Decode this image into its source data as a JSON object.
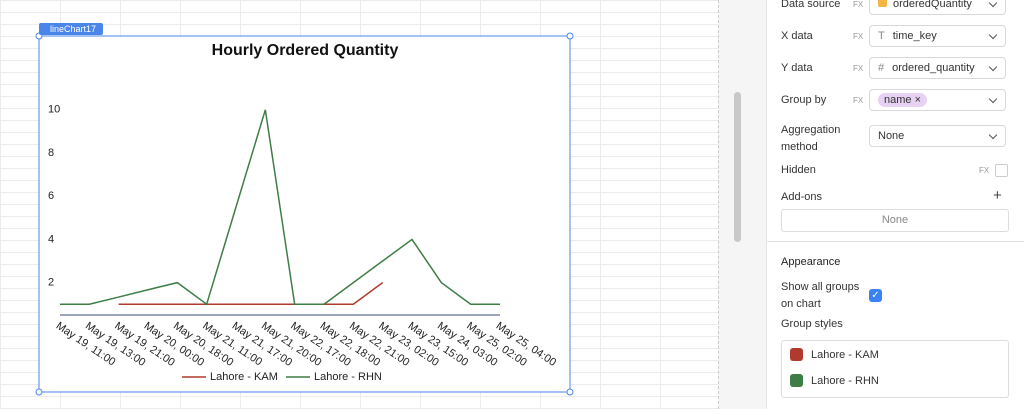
{
  "widget_label": "lineChart17",
  "chart_data": {
    "type": "line",
    "title": "Hourly Ordered Quantity",
    "categories": [
      "May 19, 11:00",
      "May 19, 13:00",
      "May 19, 21:00",
      "May 20, 00:00",
      "May 20, 18:00",
      "May 21, 11:00",
      "May 21, 17:00",
      "May 21, 20:00",
      "May 22, 17:00",
      "May 22, 18:00",
      "May 22, 21:00",
      "May 23, 02:00",
      "May 23, 15:00",
      "May 24, 03:00",
      "May 25, 02:00",
      "May 25, 04:00"
    ],
    "series": [
      {
        "name": "Lahore - KAM",
        "color": "#b03a2e",
        "values": [
          null,
          null,
          1,
          1,
          1,
          1,
          1,
          1,
          1,
          1,
          1,
          2,
          null,
          null,
          null,
          null
        ]
      },
      {
        "name": "Lahore - RHN",
        "color": "#3f7d46",
        "values": [
          1,
          1,
          1.33,
          1.67,
          2,
          1,
          5.5,
          10,
          1,
          1,
          2,
          3,
          4,
          2,
          1,
          1
        ]
      }
    ],
    "ylim": [
      0.5,
      10.5
    ],
    "yticks": [
      2,
      4,
      6,
      8,
      10
    ],
    "legend": "bottom"
  },
  "panel": {
    "fx_label": "FX",
    "data_source": {
      "label": "Data source",
      "value": "orderedQuantity"
    },
    "x_data": {
      "label": "X data",
      "value": "time_key"
    },
    "y_data": {
      "label": "Y data",
      "value": "ordered_quantity"
    },
    "group_by": {
      "label": "Group by",
      "value": "name"
    },
    "aggregation": {
      "label": "Aggregation method",
      "value": "None"
    },
    "hidden": {
      "label": "Hidden"
    },
    "addons": {
      "label": "Add-ons",
      "value": "None"
    },
    "appearance": {
      "title": "Appearance",
      "show_all_groups": "Show all groups on chart",
      "group_styles": "Group styles"
    }
  }
}
